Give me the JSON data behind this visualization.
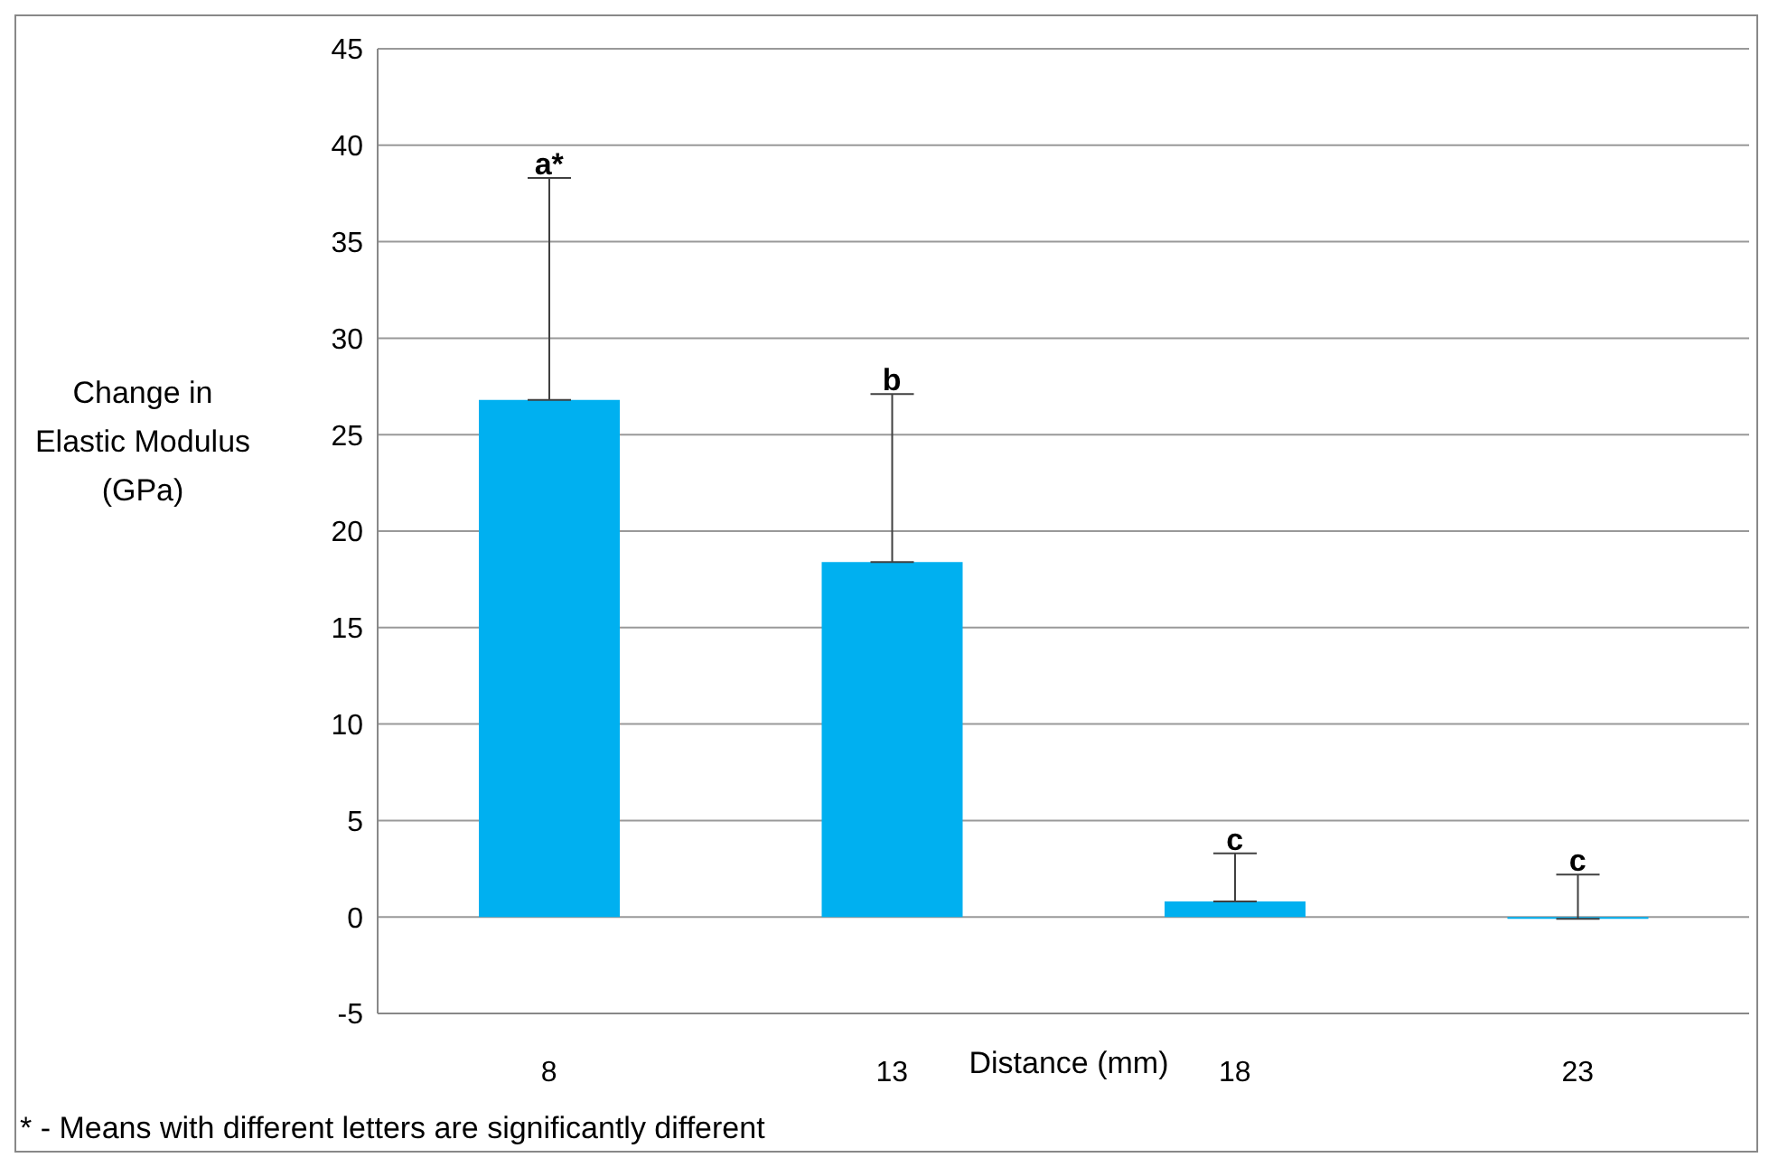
{
  "chart_data": {
    "type": "bar",
    "xlabel": "Distance (mm)",
    "ylabel": "Change in Elastic Modulus (GPa)",
    "categories": [
      "8",
      "13",
      "18",
      "23"
    ],
    "values": [
      26.8,
      18.4,
      0.8,
      -0.1
    ],
    "errors": [
      [
        26.8,
        38.3
      ],
      [
        18.4,
        27.1
      ],
      [
        0.8,
        3.3
      ],
      [
        -0.1,
        2.2
      ]
    ],
    "color": "#00b0f0",
    "ylim": [
      -5,
      45
    ],
    "yticks": [
      -5,
      0,
      5,
      10,
      15,
      20,
      25,
      30,
      35,
      40,
      45
    ],
    "grid": "y",
    "annotations": [
      {
        "text": "a*",
        "x": "8",
        "y": 38.3
      },
      {
        "text": "b",
        "x": "13",
        "y": 27.1
      },
      {
        "text": "c",
        "x": "18",
        "y": 3.3
      },
      {
        "text": "c",
        "x": "23",
        "y": 2.2
      },
      "* - Means with different letters are significantly different"
    ]
  }
}
